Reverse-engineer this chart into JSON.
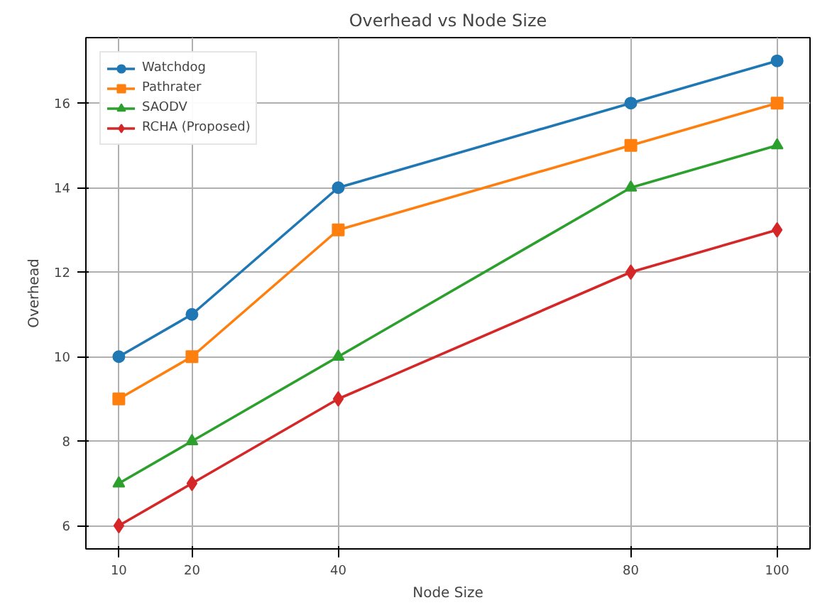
{
  "chart_data": {
    "type": "line",
    "title": "Overhead vs Node Size",
    "xlabel": "Node Size",
    "ylabel": "Overhead",
    "x": [
      10,
      20,
      40,
      80,
      100
    ],
    "series": [
      {
        "name": "Watchdog",
        "color": "#1f77b4",
        "marker": "circle",
        "values": [
          10,
          11,
          14,
          16,
          17
        ]
      },
      {
        "name": "Pathrater",
        "color": "#ff7f0e",
        "marker": "square",
        "values": [
          9,
          10,
          13,
          15,
          16
        ]
      },
      {
        "name": "SAODV",
        "color": "#2ca02c",
        "marker": "triangle",
        "values": [
          7,
          8,
          10,
          14,
          15
        ]
      },
      {
        "name": "RCHA (Proposed)",
        "color": "#d62728",
        "marker": "diamond",
        "values": [
          6,
          7,
          9,
          12,
          13
        ]
      }
    ],
    "xlim": [
      5.5,
      104.5
    ],
    "ylim": [
      5.45,
      17.55
    ],
    "xticks": [
      10,
      20,
      40,
      80,
      100
    ],
    "yticks": [
      6,
      8,
      10,
      12,
      14,
      16
    ],
    "grid": true,
    "legend": "top left",
    "line_style": "solid"
  }
}
